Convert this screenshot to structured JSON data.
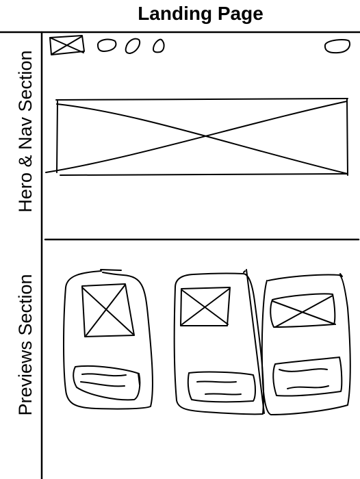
{
  "title": "Landing Page",
  "sections": [
    {
      "label": "Hero & Nav Section"
    },
    {
      "label": "Previews Section"
    }
  ]
}
